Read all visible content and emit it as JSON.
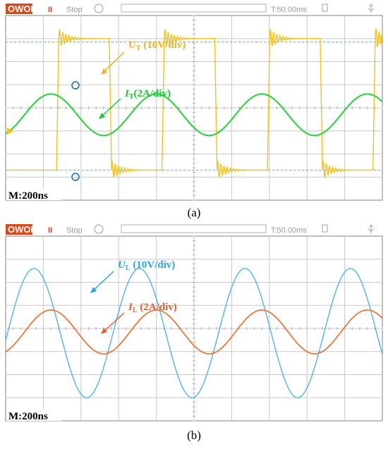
{
  "panels": [
    {
      "toolbar": {
        "logo": "OWON",
        "pause": "II",
        "status": "Stop",
        "timebase": "T:50.00ms"
      },
      "timebase_label": "M:200ns",
      "caption": "(a)",
      "annotations": [
        {
          "symbol": "U",
          "sub": "T",
          "text": " (10V/div)",
          "color": "#f2b21a"
        },
        {
          "symbol": "I",
          "sub": "T",
          "text": "(2A/div)",
          "color": "#1bc936"
        }
      ],
      "colors": {
        "ch1": "#f2c318",
        "ch2": "#22d43a",
        "cursor": "#22c8d8"
      }
    },
    {
      "toolbar": {
        "logo": "OWON",
        "pause": "II",
        "status": "Stop",
        "timebase": "T:50.00ms"
      },
      "timebase_label": "M:200ns",
      "caption": "(b)",
      "annotations": [
        {
          "symbol": "U",
          "sub": "L",
          "text": " (10V/div)",
          "color": "#27a8e0"
        },
        {
          "symbol": "I",
          "sub": "L",
          "text": " (2A/div)",
          "color": "#ee5a2c"
        }
      ],
      "colors": {
        "ch1": "#3fb4e8",
        "ch2": "#f06a2a"
      }
    }
  ],
  "chart_data": [
    {
      "type": "line",
      "xlabel": "",
      "ylabel": "",
      "x_units": "divisions (200ns/div)",
      "xlim": [
        0,
        10
      ],
      "ylim": [
        -4,
        4
      ],
      "grid": true,
      "series": [
        {
          "name": "U_T (10V/div)",
          "waveform": "square",
          "amplitude_div": 2.85,
          "offset_div": 0.15,
          "period_div": 2.8,
          "rings_at_edges": true
        },
        {
          "name": "I_T(2A/div)",
          "waveform": "sine",
          "amplitude_div": 0.9,
          "offset_div": -0.3,
          "period_div": 2.8
        }
      ],
      "cursors_div": [
        2.85,
        -2.7
      ]
    },
    {
      "type": "line",
      "xlabel": "",
      "ylabel": "",
      "x_units": "divisions (200ns/div)",
      "xlim": [
        0,
        10
      ],
      "ylim": [
        -4,
        4
      ],
      "grid": true,
      "series": [
        {
          "name": "U_L (10V/div)",
          "waveform": "sine",
          "amplitude_div": 2.8,
          "offset_div": -0.2,
          "period_div": 2.8
        },
        {
          "name": "I_L (2A/div)",
          "waveform": "sine",
          "amplitude_div": 0.95,
          "offset_div": -0.15,
          "period_div": 2.8
        }
      ]
    }
  ]
}
